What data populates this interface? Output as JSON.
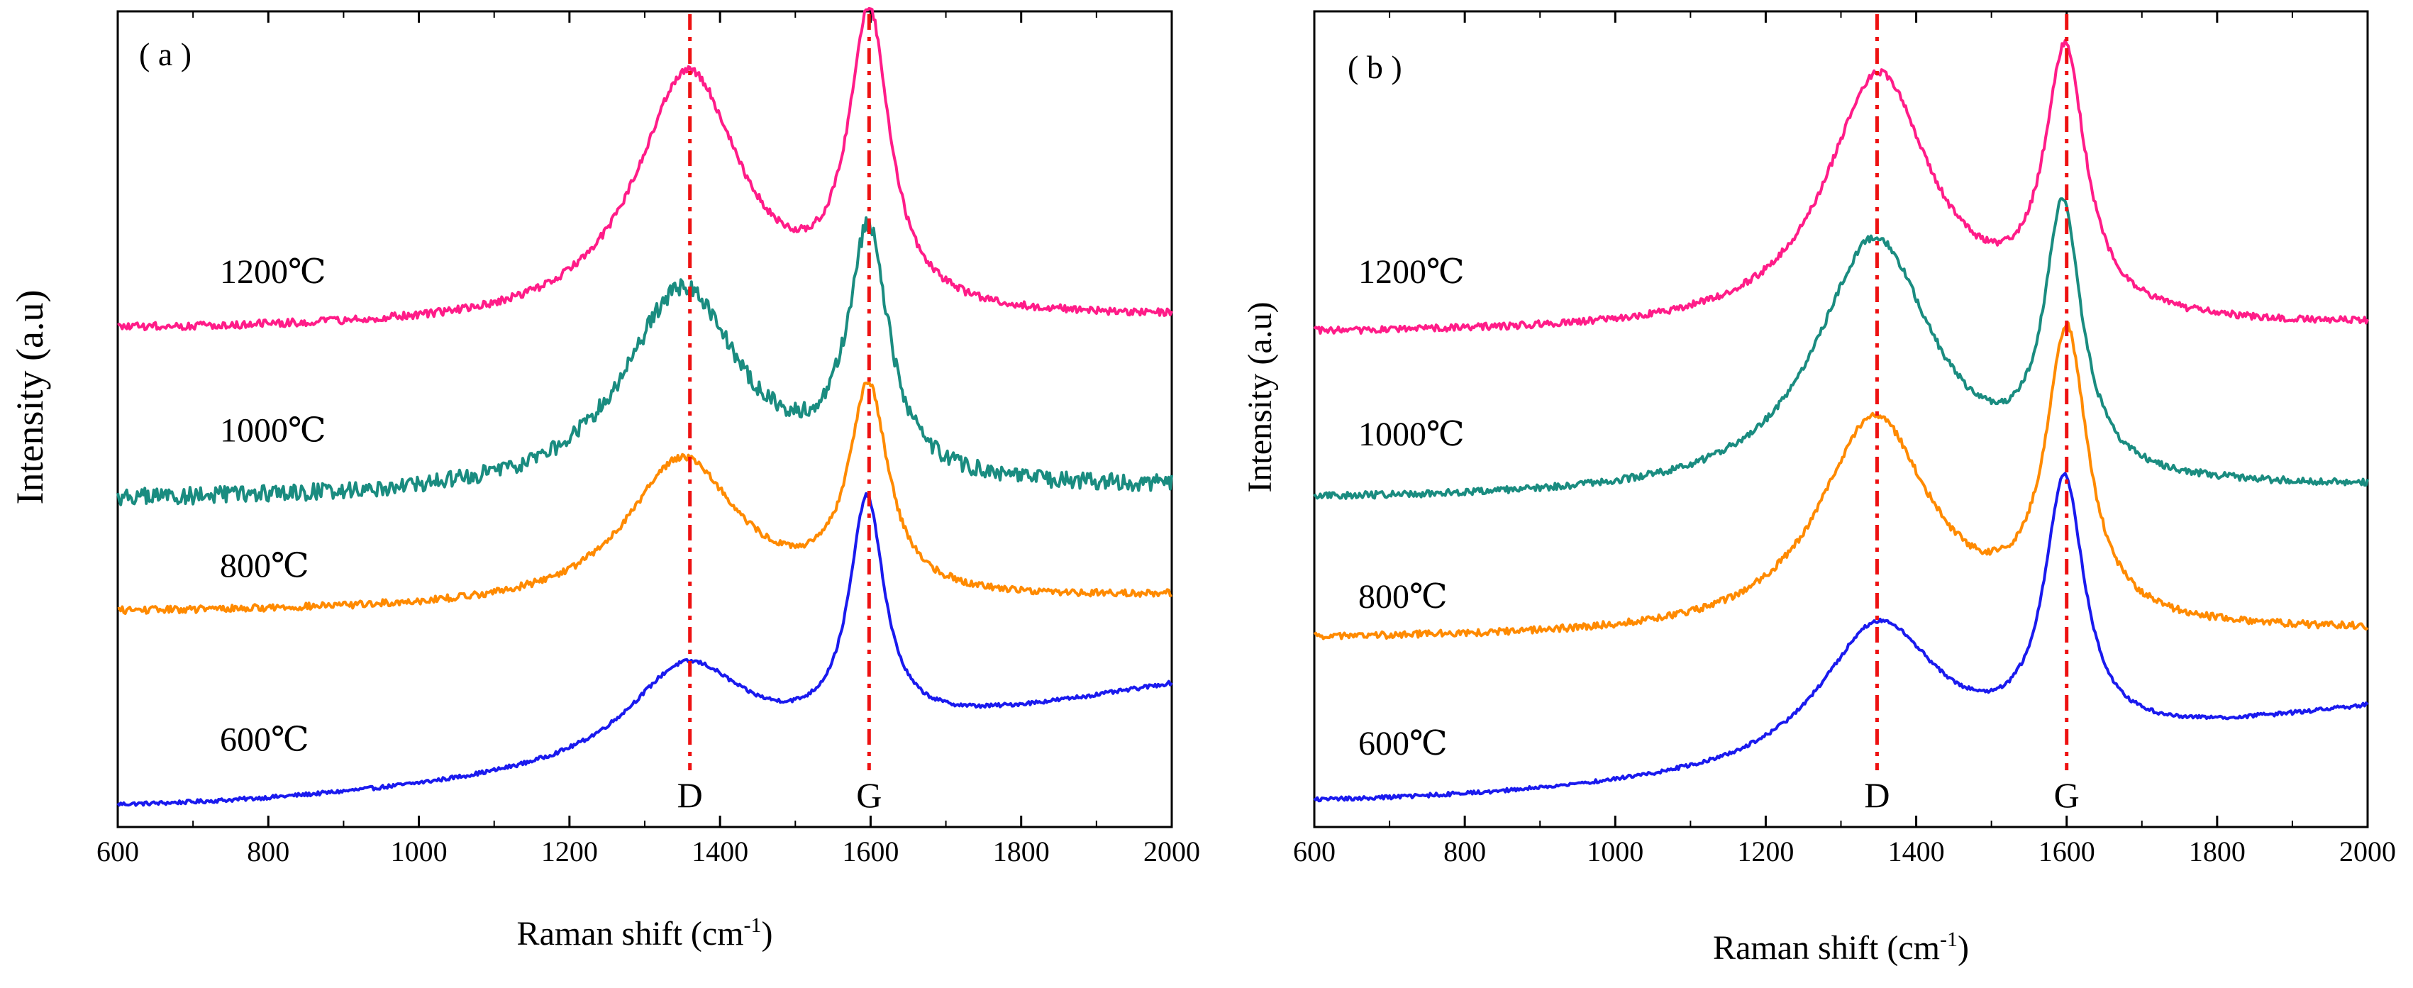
{
  "figure": {
    "panels": [
      {
        "id": "a",
        "panel_label": "( a )",
        "chart_data": {
          "type": "line",
          "title": "",
          "xlabel": "Raman shift (cm-1)",
          "xlabel_main": "Raman shift (cm",
          "xlabel_sup": "-1",
          "xlabel_close": ")",
          "ylabel": "Intensity (a.u)",
          "xlim": [
            600,
            2000
          ],
          "ylim": [
            0,
            100
          ],
          "xticks": [
            600,
            800,
            1000,
            1200,
            1400,
            1600,
            1800,
            2000
          ],
          "xtick_labels": [
            "600",
            "800",
            "1000",
            "1200",
            "1400",
            "1600",
            "1800",
            "2000"
          ],
          "show_yticks": false,
          "peak_lines": [
            {
              "name": "D",
              "x": 1360,
              "color": "#ee1111"
            },
            {
              "name": "G",
              "x": 1598,
              "color": "#ee1111"
            }
          ],
          "series": [
            {
              "name": "600℃",
              "color": "#1a1aee",
              "baseline": 0.0,
              "end_value": 15.5,
              "knee_value": 6.0,
              "peaks": [
                {
                  "pos": 1355,
                  "height": 12.5,
                  "width": 95
                },
                {
                  "pos": 1595,
                  "height": 29.5,
                  "width": 28
                }
              ],
              "noise": 0.25,
              "label_value": 6.0
            },
            {
              "name": "800℃",
              "color": "#ff8a00",
              "baseline": 25.0,
              "end_value": 27.0,
              "knee_value": 26.0,
              "peaks": [
                {
                  "pos": 1350,
                  "height": 19.0,
                  "width": 90
                },
                {
                  "pos": 1597,
                  "height": 26.5,
                  "width": 32
                }
              ],
              "noise": 0.45,
              "label_value": 28.5
            },
            {
              "name": "1000℃",
              "color": "#1a8c80",
              "baseline": 39.5,
              "end_value": 41.0,
              "knee_value": 40.0,
              "peaks": [
                {
                  "pos": 1350,
                  "height": 26.5,
                  "width": 95
                },
                {
                  "pos": 1597,
                  "height": 31.5,
                  "width": 33
                }
              ],
              "noise": 1.1,
              "label_value": 46.0
            },
            {
              "name": "1200℃",
              "color": "#ff1c88",
              "baseline": 61.5,
              "end_value": 63.0,
              "knee_value": 62.0,
              "peaks": [
                {
                  "pos": 1358,
                  "height": 32.5,
                  "width": 85
                },
                {
                  "pos": 1598,
                  "height": 37.5,
                  "width": 33
                }
              ],
              "noise": 0.5,
              "label_value": 66.5
            }
          ]
        }
      },
      {
        "id": "b",
        "panel_label": "( b )",
        "chart_data": {
          "type": "line",
          "title": "",
          "xlabel": "Raman shift (cm-1)",
          "xlabel_main": "Raman shift (cm",
          "xlabel_sup": "-1",
          "xlabel_close": ")",
          "ylabel": "Intensity (a.u)",
          "xlim": [
            600,
            2000
          ],
          "ylim": [
            0,
            100
          ],
          "xticks": [
            600,
            800,
            1000,
            1200,
            1400,
            1600,
            1800,
            2000
          ],
          "xtick_labels": [
            "600",
            "800",
            "1000",
            "1200",
            "1400",
            "1600",
            "1800",
            "2000"
          ],
          "show_yticks": false,
          "peak_lines": [
            {
              "name": "D",
              "x": 1348,
              "color": "#ee1111"
            },
            {
              "name": "G",
              "x": 1600,
              "color": "#ee1111"
            }
          ],
          "series": [
            {
              "name": "600℃",
              "color": "#1a1aee",
              "baseline": 0.5,
              "end_value": 12.5,
              "knee_value": 5.0,
              "peaks": [
                {
                  "pos": 1350,
                  "height": 18.5,
                  "width": 95
                },
                {
                  "pos": 1597,
                  "height": 33.0,
                  "width": 32
                }
              ],
              "noise": 0.25,
              "label_value": 5.5
            },
            {
              "name": "800℃",
              "color": "#ff8a00",
              "baseline": 21.5,
              "end_value": 22.5,
              "knee_value": 22.0,
              "peaks": [
                {
                  "pos": 1345,
                  "height": 28.0,
                  "width": 90
                },
                {
                  "pos": 1600,
                  "height": 37.0,
                  "width": 34
                }
              ],
              "noise": 0.45,
              "label_value": 24.5
            },
            {
              "name": "1000℃",
              "color": "#1a8c80",
              "baseline": 39.5,
              "end_value": 41.0,
              "knee_value": 40.0,
              "peaks": [
                {
                  "pos": 1345,
                  "height": 33.0,
                  "width": 95
                },
                {
                  "pos": 1595,
                  "height": 34.0,
                  "width": 30
                }
              ],
              "noise": 0.45,
              "label_value": 45.5
            },
            {
              "name": "1200℃",
              "color": "#ff1c88",
              "baseline": 61.0,
              "end_value": 62.0,
              "knee_value": 61.5,
              "peaks": [
                {
                  "pos": 1350,
                  "height": 33.0,
                  "width": 85
                },
                {
                  "pos": 1598,
                  "height": 33.5,
                  "width": 33
                }
              ],
              "noise": 0.45,
              "label_value": 66.5
            }
          ]
        }
      }
    ]
  }
}
